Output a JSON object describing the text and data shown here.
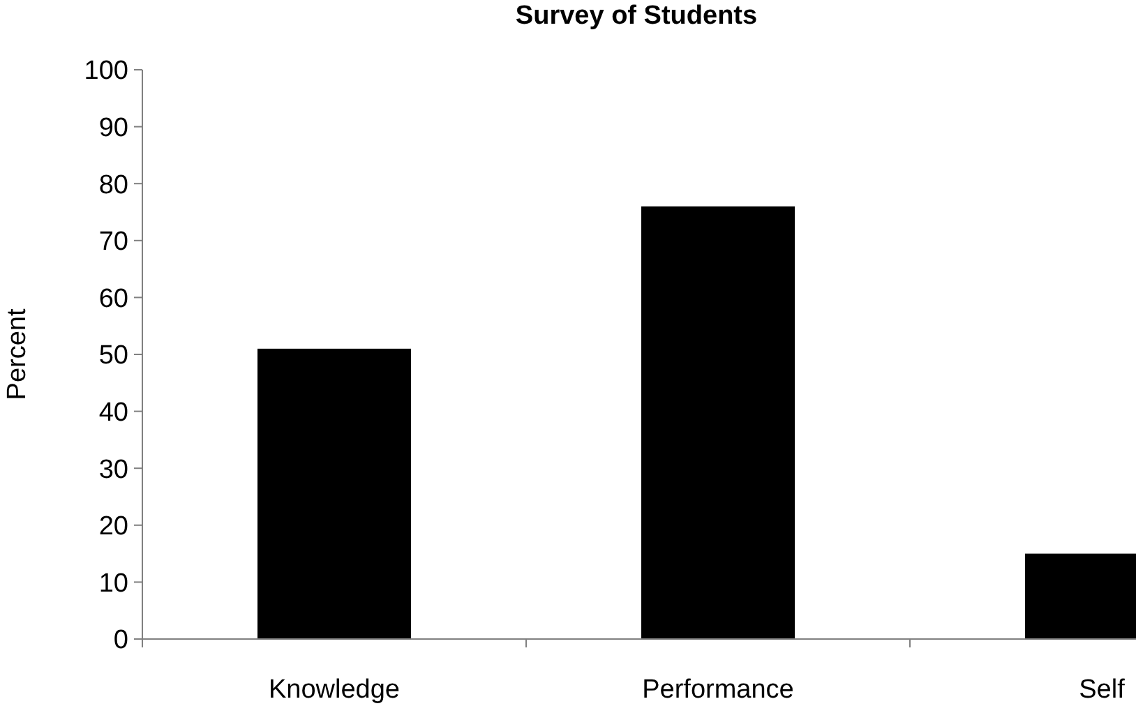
{
  "chart_data": {
    "type": "bar",
    "title": "Survey of Students",
    "ylabel": "Percent",
    "categories": [
      "Knowledge",
      "Performance",
      "Self"
    ],
    "values": [
      51,
      76,
      15
    ],
    "color": "#000000",
    "ylim": [
      0,
      100
    ],
    "yticks": [
      0,
      10,
      20,
      30,
      40,
      50,
      60,
      70,
      80,
      90,
      100
    ],
    "grid": false
  }
}
